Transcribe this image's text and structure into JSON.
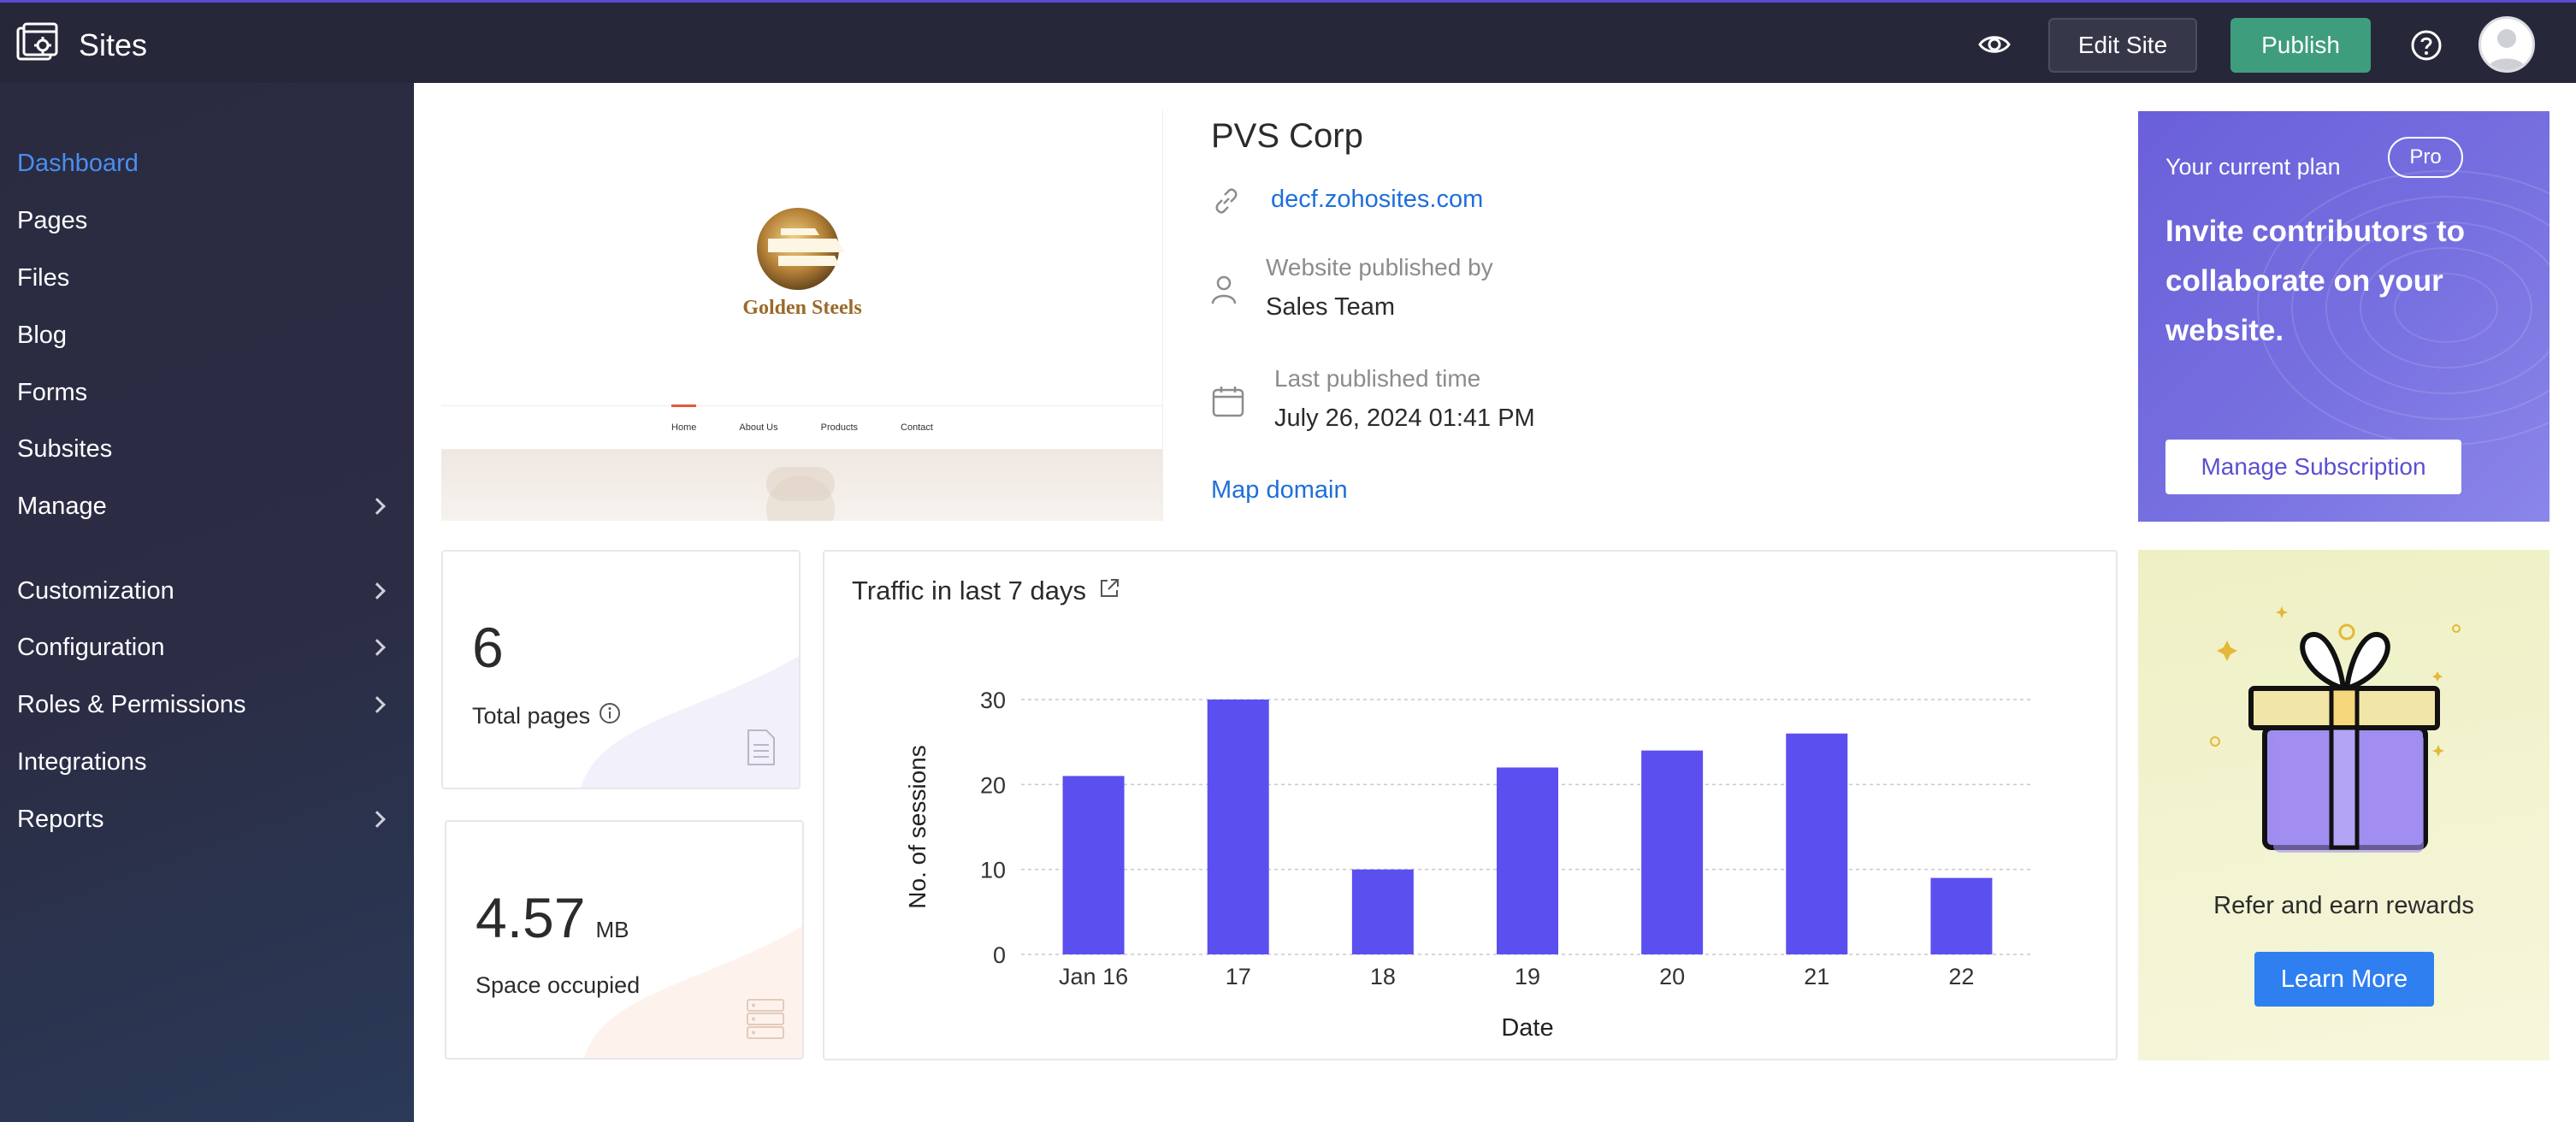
{
  "app": {
    "title": "Sites"
  },
  "toolbar": {
    "edit_label": "Edit Site",
    "publish_label": "Publish"
  },
  "sidebar": {
    "items": [
      {
        "label": "Dashboard",
        "active": true,
        "has_children": false
      },
      {
        "label": "Pages",
        "has_children": false
      },
      {
        "label": "Files",
        "has_children": false
      },
      {
        "label": "Blog",
        "has_children": false
      },
      {
        "label": "Forms",
        "has_children": false
      },
      {
        "label": "Subsites",
        "has_children": false
      },
      {
        "label": "Manage",
        "has_children": true
      },
      {
        "label": "Customization",
        "has_children": true
      },
      {
        "label": "Configuration",
        "has_children": true
      },
      {
        "label": "Roles & Permissions",
        "has_children": true
      },
      {
        "label": "Integrations",
        "has_children": false
      },
      {
        "label": "Reports",
        "has_children": true
      }
    ]
  },
  "preview": {
    "logo_text": "Golden Steels",
    "nav": [
      "Home",
      "About Us",
      "Products",
      "Contact"
    ]
  },
  "site": {
    "name": "PVS Corp",
    "url": "decf.zohosites.com",
    "published_by_label": "Website published by",
    "published_by": "Sales Team",
    "last_published_label": "Last published time",
    "last_published": "July 26, 2024 01:41 PM",
    "map_domain_label": "Map domain"
  },
  "plan": {
    "label": "Your current plan",
    "badge": "Pro",
    "message": "Invite contributors to collaborate on your website.",
    "button": "Manage Subscription"
  },
  "stats": {
    "pages": {
      "value": "6",
      "label": "Total pages"
    },
    "space": {
      "value": "4.57",
      "unit": "MB",
      "label": "Space occupied"
    }
  },
  "chart": {
    "title": "Traffic in last 7 days"
  },
  "chart_data": {
    "type": "bar",
    "categories": [
      "Jan 16",
      "17",
      "18",
      "19",
      "20",
      "21",
      "22"
    ],
    "values": [
      21,
      30,
      10,
      22,
      24,
      26,
      9
    ],
    "xlabel": "Date",
    "ylabel": "No. of sessions",
    "ylim": [
      0,
      30
    ],
    "yticks": [
      0,
      10,
      20,
      30
    ],
    "grid": true,
    "color": "#5b4ff0"
  },
  "refer": {
    "text": "Refer and earn rewards",
    "button": "Learn More"
  },
  "colors": {
    "accent": "#5b4ff0",
    "publish": "#3e9d7d",
    "link": "#1f6fd8",
    "topbar": "#262839"
  }
}
